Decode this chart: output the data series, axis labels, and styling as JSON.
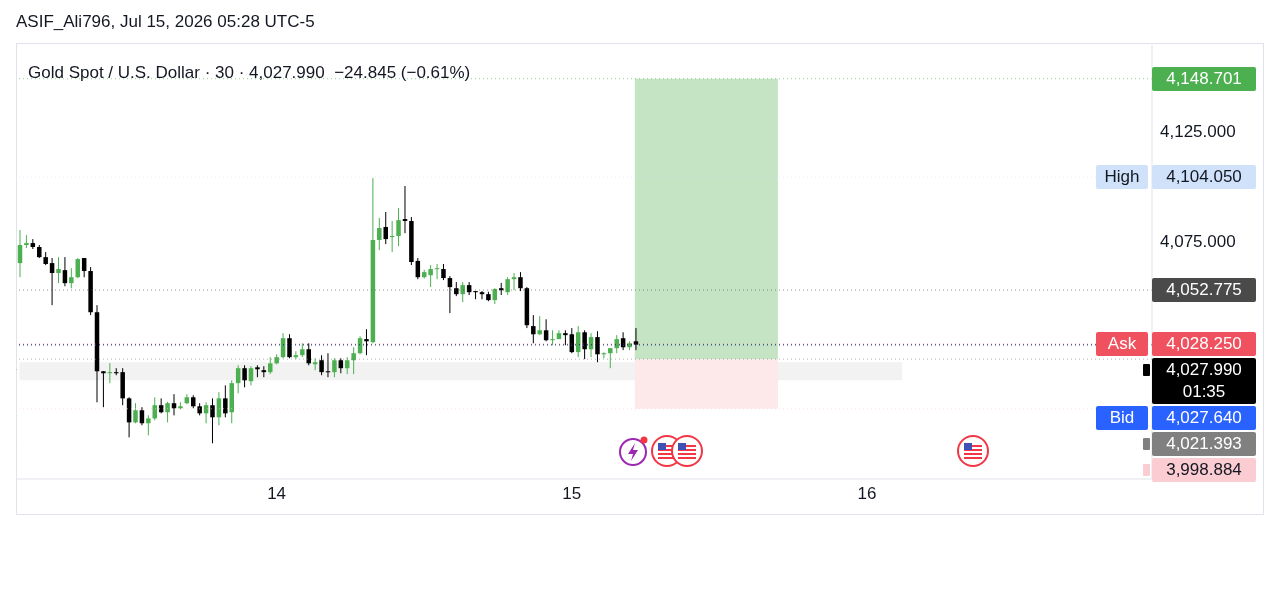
{
  "chart_data": {
    "type": "candlestick",
    "title": "Gold Spot / U.S. Dollar · 30 · 4,027.990  −24.845 (−0.61%)",
    "annotations": [
      "ASIF_Ali796, Jul 15, 2026 05:28 UTC-5"
    ],
    "x": [
      13.1304,
      13.1522,
      13.1739,
      13.1957,
      13.2174,
      13.2391,
      13.2609,
      13.2826,
      13.3043,
      13.3261,
      13.3478,
      13.3696,
      13.3913,
      13.413,
      13.4348,
      13.4565,
      13.4783,
      13.5,
      13.5217,
      13.5435,
      13.5652,
      13.587,
      13.6087,
      13.6304,
      13.6522,
      13.6739,
      13.6957,
      13.7174,
      13.7391,
      13.7609,
      13.7826,
      13.8043,
      13.8261,
      13.8478,
      13.8696,
      13.8913,
      13.913,
      13.9348,
      13.9565,
      13.9783,
      14.0,
      14.0217,
      14.0435,
      14.0652,
      14.087,
      14.1087,
      14.1304,
      14.1522,
      14.1739,
      14.1957,
      14.2174,
      14.2391,
      14.2609,
      14.2826,
      14.3043,
      14.3261,
      14.3478,
      14.3696,
      14.3913,
      14.413,
      14.4348,
      14.4565,
      14.4783,
      14.5,
      14.5217,
      14.5435,
      14.5652,
      14.587,
      14.6087,
      14.6304,
      14.6522,
      14.6739,
      14.6957,
      14.7174,
      14.7391,
      14.7609,
      14.7826,
      14.8043,
      14.8261,
      14.8478,
      14.8696,
      14.8913,
      14.913,
      14.9348,
      14.9565,
      14.9783,
      15.0,
      15.0217,
      15.0435,
      15.0652,
      15.087,
      15.1087,
      15.1304,
      15.1522,
      15.1739,
      15.1957,
      15.2174
    ],
    "ohlc": [
      [
        4065,
        4080,
        4058.6,
        4073.2
      ],
      [
        4073.2,
        4077.7,
        4071.8,
        4074.1
      ],
      [
        4074.1,
        4075.9,
        4071.4,
        4072.3
      ],
      [
        4072.3,
        4073.2,
        4067.3,
        4067.7
      ],
      [
        4067.7,
        4070,
        4064.1,
        4064.6
      ],
      [
        4065,
        4067.3,
        4045.9,
        4060.5
      ],
      [
        4060.5,
        4067.7,
        4055.9,
        4062.3
      ],
      [
        4061.8,
        4067.7,
        4054.5,
        4055.9
      ],
      [
        4055.9,
        4062.7,
        4053.6,
        4058.6
      ],
      [
        4058.6,
        4067.3,
        4058.2,
        4066.8
      ],
      [
        4067.3,
        4067.3,
        4058.6,
        4061.4
      ],
      [
        4061.4,
        4063.2,
        4041.4,
        4042.7
      ],
      [
        4042.7,
        4045.9,
        4001.8,
        4015.9
      ],
      [
        4015.9,
        4016,
        3999.6,
        4015
      ],
      [
        4015,
        4019.6,
        4010.5,
        4015.5
      ],
      [
        4015.5,
        4017.3,
        4014.1,
        4015
      ],
      [
        4015.5,
        4017.3,
        4000.5,
        4003.6
      ],
      [
        4003.6,
        4004.1,
        3985.9,
        3992.7
      ],
      [
        3992.7,
        4001.4,
        3992.3,
        3998.2
      ],
      [
        3998.2,
        3999.6,
        3991.4,
        3992.3
      ],
      [
        3992.3,
        3995.9,
        3986.8,
        3994.5
      ],
      [
        3994.5,
        4004.1,
        3993.6,
        4000.5
      ],
      [
        4000.5,
        4003.6,
        3996.8,
        3997.3
      ],
      [
        3997.3,
        4002,
        3992.7,
        4001.4
      ],
      [
        4001.4,
        4005.5,
        3995.9,
        3999.1
      ],
      [
        3999.1,
        4001.8,
        3998.6,
        4000
      ],
      [
        4001.4,
        4005.5,
        4000.9,
        4004.1
      ],
      [
        4004.1,
        4005,
        3999.1,
        4000
      ],
      [
        4000,
        4001.4,
        3995.9,
        3996.8
      ],
      [
        3996.8,
        4001.8,
        3992.3,
        4000.5
      ],
      [
        4000.5,
        4003.6,
        3983.2,
        3995
      ],
      [
        3995,
        4006.4,
        3991.4,
        4003.6
      ],
      [
        4003.6,
        4009.5,
        3995,
        3996.8
      ],
      [
        3997.3,
        4011.8,
        3992.3,
        4010.5
      ],
      [
        4010.5,
        4018.6,
        4005.9,
        4017.3
      ],
      [
        4017.3,
        4018.6,
        4008.6,
        4011.8
      ],
      [
        4011.4,
        4018.2,
        4009.5,
        4017.3
      ],
      [
        4017.7,
        4018.6,
        4013.2,
        4016.8
      ],
      [
        4016.4,
        4018.2,
        4013.2,
        4015.5
      ],
      [
        4015.5,
        4022.3,
        4014.6,
        4019.5
      ],
      [
        4019.5,
        4023.6,
        4019.1,
        4022.3
      ],
      [
        4022.3,
        4033.2,
        4021.8,
        4030.9
      ],
      [
        4030.9,
        4032.7,
        4021.8,
        4022.3
      ],
      [
        4022.3,
        4025,
        4021.4,
        4023.2
      ],
      [
        4023.2,
        4028.6,
        4022.3,
        4025.9
      ],
      [
        4025.9,
        4028.6,
        4018.6,
        4019.5
      ],
      [
        4019.1,
        4021.8,
        4016.4,
        4020
      ],
      [
        4020.9,
        4023.2,
        4014.1,
        4015.5
      ],
      [
        4015.9,
        4024.1,
        4013.2,
        4015.5
      ],
      [
        4015.5,
        4021.8,
        4013.2,
        4020.9
      ],
      [
        4020.9,
        4021.8,
        4015,
        4017.3
      ],
      [
        4017.3,
        4022.3,
        4014.6,
        4020.9
      ],
      [
        4020.9,
        4026.8,
        4014.6,
        4024.1
      ],
      [
        4024.1,
        4031.8,
        4023.6,
        4030.9
      ],
      [
        4030.5,
        4035,
        4023.2,
        4029.5
      ],
      [
        4029.1,
        4103.6,
        4028.6,
        4075.5
      ],
      [
        4075.5,
        4085.5,
        4070.9,
        4080.9
      ],
      [
        4081.4,
        4088.2,
        4073.6,
        4075.9
      ],
      [
        4076.8,
        4084.1,
        4070,
        4077.3
      ],
      [
        4077.3,
        4090,
        4072.7,
        4084.5
      ],
      [
        4085,
        4100,
        4078.6,
        4084.1
      ],
      [
        4084.1,
        4085.9,
        4064.1,
        4065.5
      ],
      [
        4066,
        4067.3,
        4057.7,
        4058.6
      ],
      [
        4058.6,
        4062,
        4058,
        4060.9
      ],
      [
        4059.5,
        4064.1,
        4054.1,
        4062.3
      ],
      [
        4062.3,
        4064.6,
        4057.7,
        4062.7
      ],
      [
        4062.3,
        4064.6,
        4057.3,
        4058.2
      ],
      [
        4058.2,
        4059.1,
        4042.3,
        4054.1
      ],
      [
        4053.6,
        4056.4,
        4050,
        4050.9
      ],
      [
        4050.9,
        4056.4,
        4047.3,
        4055
      ],
      [
        4055,
        4056.4,
        4050.5,
        4051.8
      ],
      [
        4052.3,
        4052.3,
        4048.6,
        4051.8
      ],
      [
        4051.8,
        4052.3,
        4048.6,
        4050.9
      ],
      [
        4050.9,
        4052,
        4047.7,
        4048.2
      ],
      [
        4048.2,
        4053.6,
        4046.4,
        4053.2
      ],
      [
        4053.6,
        4056,
        4050.5,
        4052.7
      ],
      [
        4051.8,
        4058.6,
        4050.5,
        4057.7
      ],
      [
        4057.7,
        4060.5,
        4052.7,
        4058.6
      ],
      [
        4058.6,
        4060.9,
        4052.3,
        4053.6
      ],
      [
        4053.6,
        4054.1,
        4035.5,
        4036.8
      ],
      [
        4036.4,
        4041.4,
        4028.6,
        4032.7
      ],
      [
        4032.7,
        4040.9,
        4032.3,
        4034.5
      ],
      [
        4034.5,
        4039.5,
        4029.5,
        4030
      ],
      [
        4030,
        4034.5,
        4027.7,
        4030.5
      ],
      [
        4030.5,
        4034.5,
        4030.5,
        4033.2
      ],
      [
        4033.2,
        4034.5,
        4027.7,
        4032.3
      ],
      [
        4032.7,
        4035.5,
        4024.1,
        4024.6
      ],
      [
        4024.6,
        4036.4,
        4022.3,
        4033.6
      ],
      [
        4033.6,
        4034.5,
        4021.4,
        4025.9
      ],
      [
        4025.9,
        4033.2,
        4022.3,
        4031.4
      ],
      [
        4031.4,
        4034.1,
        4020,
        4023.6
      ],
      [
        4023.6,
        4024.5,
        4021.8,
        4024.1
      ],
      [
        4024.1,
        4026.4,
        4017.3,
        4026.4
      ],
      [
        4026.4,
        4032.3,
        4024.1,
        4030.5
      ],
      [
        4030.9,
        4033.6,
        4025.5,
        4026.8
      ],
      [
        4026.8,
        4029.5,
        4025.5,
        4028.6
      ],
      [
        4029.5,
        4035.5,
        4025.5,
        4028
      ]
    ],
    "xlim": [
      13.117,
      16.966
    ],
    "xticks": [
      14,
      15,
      16
    ],
    "legend": "right",
    "ylim": [
      3967,
      4164
    ],
    "yticks": [
      {
        "value": 4125,
        "label": "4,125.000"
      },
      {
        "value": 4075,
        "label": "4,075.000"
      }
    ],
    "bands": [
      {
        "axis": "y",
        "from": 4011.8,
        "to": 4020,
        "color": "#f2f2f2"
      },
      {
        "axis": "y",
        "from": 4021.393,
        "to": 4148.701,
        "color": "#c5e4c3"
      },
      {
        "axis": "y",
        "from": 3998.884,
        "to": 4021.393,
        "color": "#fde8ea"
      }
    ],
    "ref_lines": [
      {
        "axis": "y",
        "value": 4148.701,
        "label": "4,148.701",
        "color": "#4caf50",
        "line_style": "dotted"
      },
      {
        "axis": "y",
        "value": 4104.05,
        "label": "High 4,104.050",
        "color": "#cfe2fa",
        "line_style": "dotted"
      },
      {
        "axis": "y",
        "value": 4052.775,
        "label": "4,052.775",
        "color": "#4a4a4a",
        "line_style": "dotted"
      },
      {
        "axis": "y",
        "value": 4028.25,
        "label": "Ask 4,028.250",
        "color": "#f0515f",
        "line_style": "dotted"
      },
      {
        "axis": "y",
        "value": 4027.99,
        "label": "4,027.990\n01:35",
        "color": "#000000",
        "line_style": "dotted"
      },
      {
        "axis": "y",
        "value": 4027.64,
        "label": "Bid 4,027.640",
        "color": "#2962ff",
        "line_style": "dotted"
      },
      {
        "axis": "y",
        "value": 4021.393,
        "label": "4,021.393",
        "color": "#808080",
        "line_style": "dotted"
      },
      {
        "axis": "y",
        "value": 3998.884,
        "label": "3,998.884",
        "color": "#fbcdd2",
        "line_style": "dotted"
      }
    ]
  }
}
